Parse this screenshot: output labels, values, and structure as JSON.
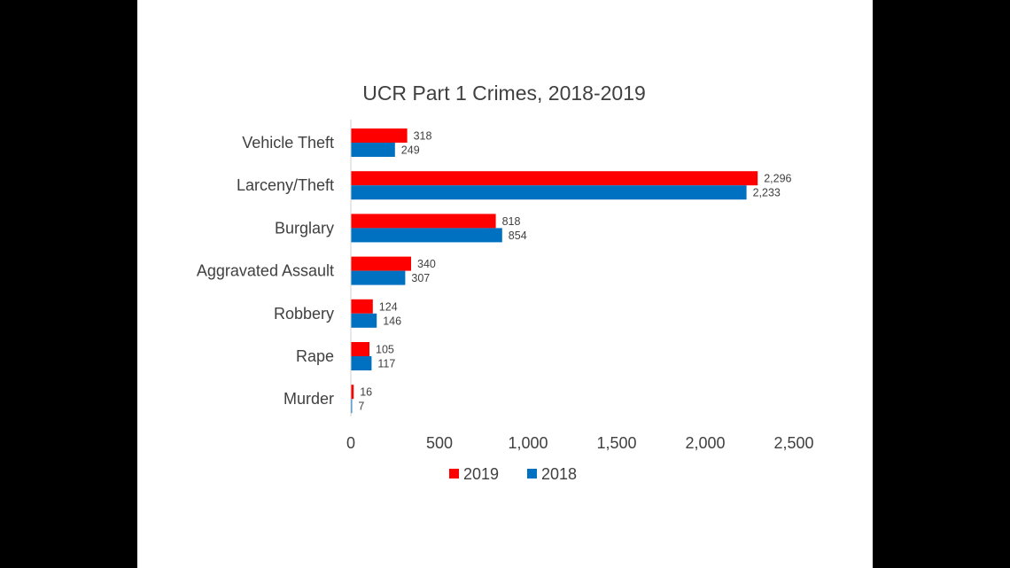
{
  "chart_data": {
    "type": "bar",
    "orientation": "horizontal",
    "title": "UCR Part 1 Crimes, 2018-2019",
    "categories": [
      "Vehicle Theft",
      "Larceny/Theft",
      "Burglary",
      "Aggravated Assault",
      "Robbery",
      "Rape",
      "Murder"
    ],
    "series": [
      {
        "name": "2019",
        "color": "#FF0000",
        "values": [
          318,
          2296,
          818,
          340,
          124,
          105,
          16
        ],
        "labels": [
          "318",
          "2,296",
          "818",
          "340",
          "124",
          "105",
          "16"
        ]
      },
      {
        "name": "2018",
        "color": "#0070C0",
        "values": [
          249,
          2233,
          854,
          307,
          146,
          117,
          7
        ],
        "labels": [
          "249",
          "2,233",
          "854",
          "307",
          "146",
          "117",
          "7"
        ]
      }
    ],
    "xlim": [
      0,
      2500
    ],
    "xticks": [
      0,
      500,
      1000,
      1500,
      2000,
      2500
    ],
    "xtick_labels": [
      "0",
      "500",
      "1,000",
      "1,500",
      "2,000",
      "2,500"
    ],
    "grid": false,
    "legend_position": "bottom"
  }
}
